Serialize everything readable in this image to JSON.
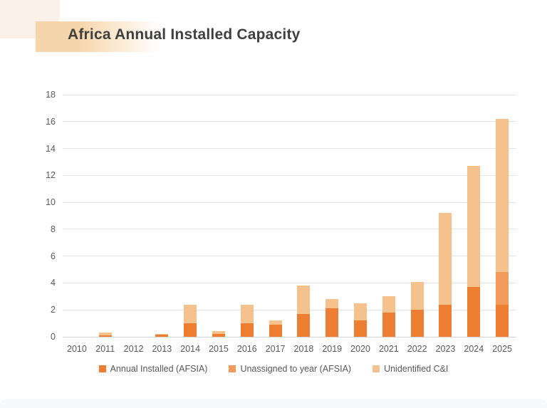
{
  "title": "Africa Annual Installed Capacity",
  "chart_data": {
    "type": "bar",
    "stacked": true,
    "title": "Africa Annual Installed Capacity",
    "xlabel": "",
    "ylabel": "",
    "ylim": [
      0,
      18
    ],
    "ytick_step": 2,
    "grid": true,
    "legend_position": "bottom",
    "categories": [
      "2010",
      "2011",
      "2012",
      "2013",
      "2014",
      "2015",
      "2016",
      "2017",
      "2018",
      "2019",
      "2020",
      "2021",
      "2022",
      "2023",
      "2024",
      "2025"
    ],
    "series": [
      {
        "name": "Annual Installed (AFSIA)",
        "color": "#ED7D31",
        "values": [
          0,
          0.1,
          0,
          0.15,
          1.0,
          0.2,
          1.0,
          0.9,
          1.7,
          2.1,
          1.2,
          1.8,
          2.0,
          2.4,
          3.7,
          2.4
        ]
      },
      {
        "name": "Unassigned to year (AFSIA)",
        "color": "#F19B5B",
        "values": [
          0,
          0,
          0,
          0,
          0,
          0,
          0,
          0,
          0,
          0,
          0,
          0,
          0,
          0,
          0,
          2.4
        ]
      },
      {
        "name": "Unidentified C&I",
        "color": "#F5C18C",
        "values": [
          0,
          0.2,
          0,
          0.05,
          1.4,
          0.25,
          1.4,
          0.3,
          2.1,
          0.7,
          1.3,
          1.2,
          2.1,
          6.8,
          9.0,
          11.4
        ]
      }
    ]
  },
  "layout_colors": {
    "title_text": "#3F3F3F",
    "axis_text": "#595959",
    "gridline": "#E4E4E4",
    "baseline": "#D5D5D5"
  }
}
